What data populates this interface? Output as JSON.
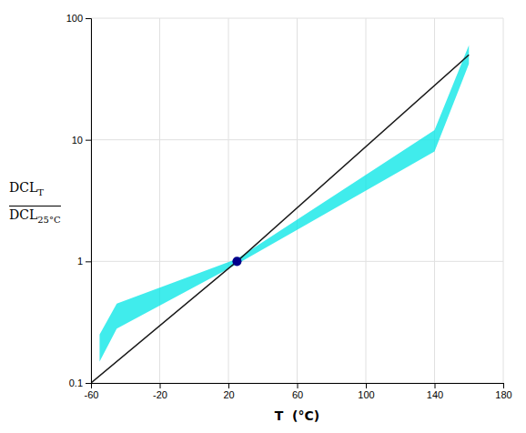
{
  "chart_data": {
    "type": "line",
    "xlabel": "T  (°C)",
    "ylabel": [
      [
        "DCL",
        "T"
      ],
      [
        "DCL",
        "25°C"
      ]
    ],
    "xlim": [
      -60,
      180
    ],
    "xticks": [
      -60,
      -20,
      20,
      60,
      100,
      140,
      180
    ],
    "ylim": [
      0.1,
      100
    ],
    "yticks": [
      0.1,
      1,
      10,
      100
    ],
    "log": "y",
    "grid": true,
    "series": [
      {
        "type": "polygon",
        "color": "#00E5E5",
        "x": [
          -55,
          -45,
          25,
          140,
          160,
          160,
          140,
          25,
          -45,
          -55
        ],
        "values": [
          0.25,
          0.45,
          1.05,
          12.0,
          60.0,
          42.0,
          8.0,
          0.95,
          0.28,
          0.15
        ]
      },
      {
        "type": "line",
        "color": "#1a1a1a",
        "x": [
          -60,
          25,
          160
        ],
        "values": [
          0.1,
          1.0,
          50.0
        ]
      },
      {
        "type": "scatter",
        "color": "#00008B",
        "marker": "circle",
        "x": [
          25
        ],
        "values": [
          1.0
        ]
      }
    ]
  }
}
